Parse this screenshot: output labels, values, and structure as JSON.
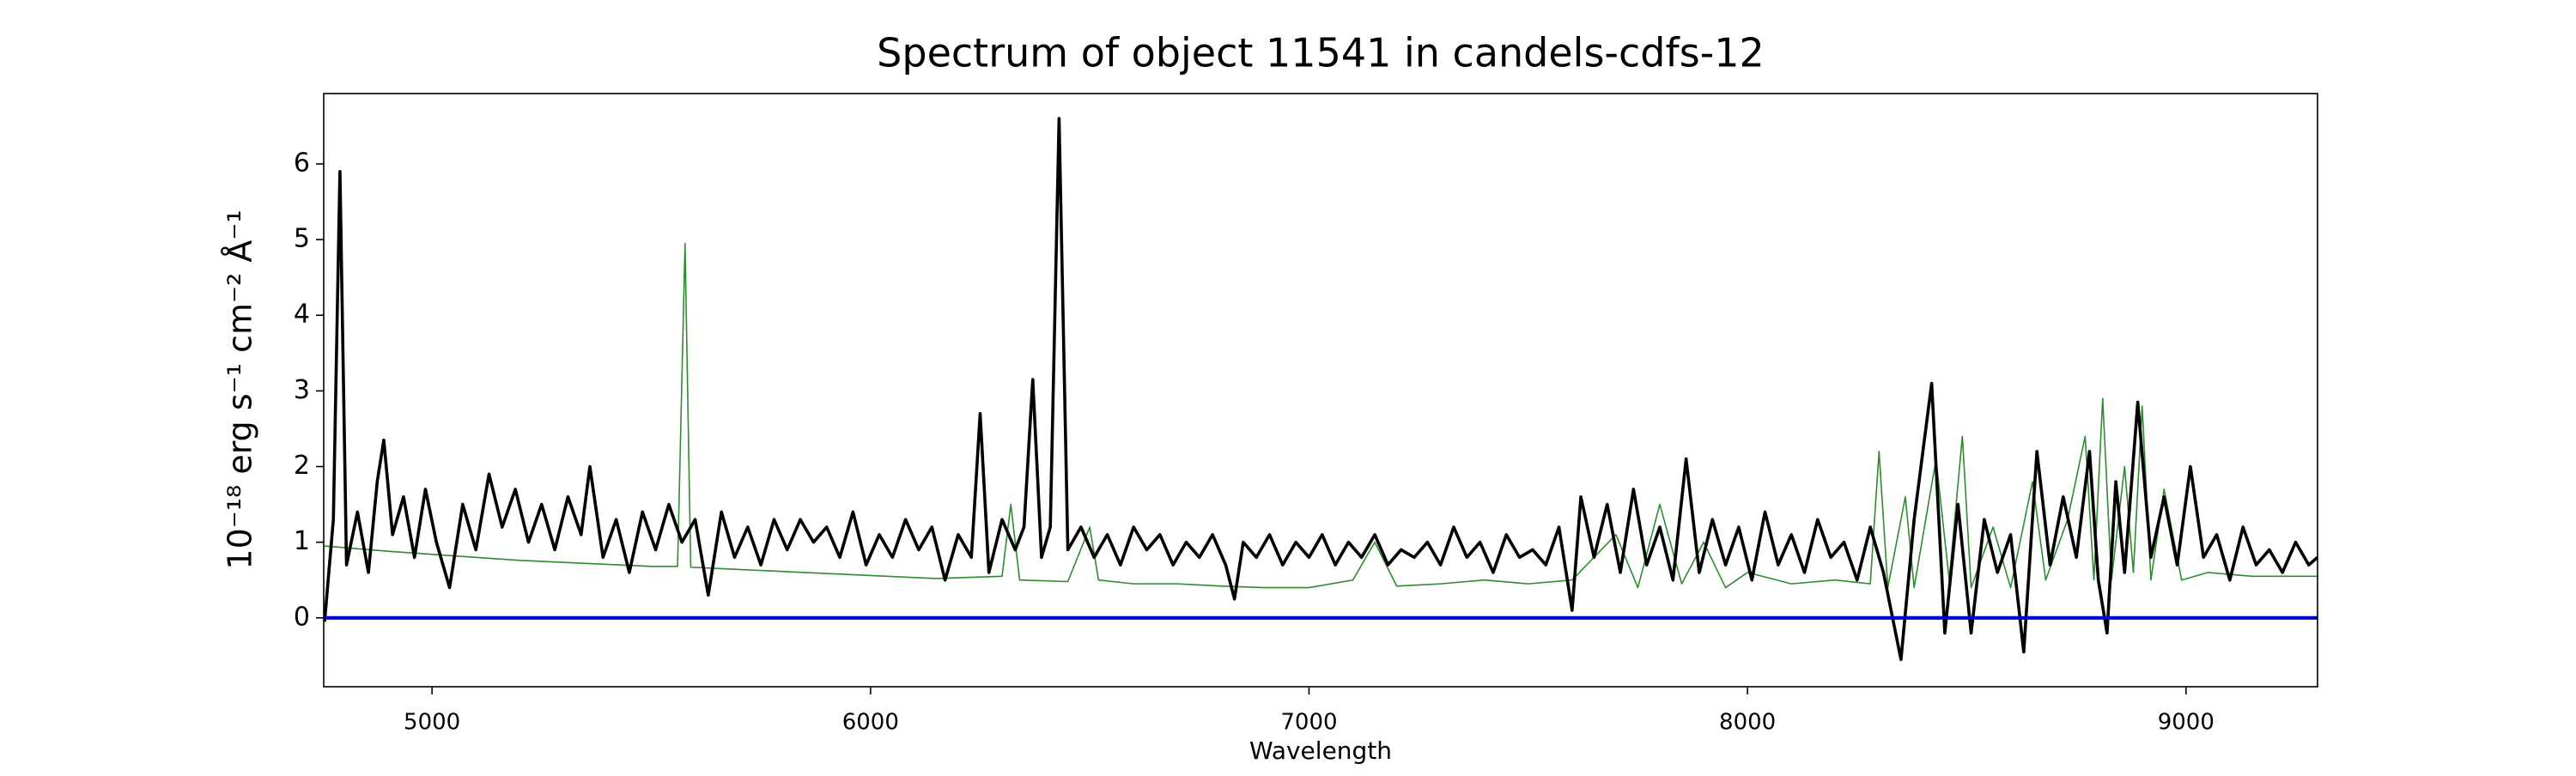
{
  "chart_data": {
    "type": "line",
    "title": "Spectrum of object 11541 in candels-cdfs-12",
    "x_label": "Wavelength",
    "y_label": "10⁻¹⁸ erg s⁻¹ cm⁻² Å⁻¹",
    "xlim": [
      4753,
      9300
    ],
    "ylim": [
      -0.91,
      6.93
    ],
    "xticks": [
      5000,
      6000,
      7000,
      8000,
      9000
    ],
    "yticks": [
      0,
      1,
      2,
      3,
      4,
      5,
      6
    ],
    "grid": false,
    "series": [
      {
        "color": "#2e8b2e",
        "width": 1.6,
        "x": [
          4755,
          4900,
          5050,
          5200,
          5350,
          5500,
          5560,
          5577,
          5590,
          5700,
          5850,
          6000,
          6150,
          6300,
          6320,
          6340,
          6450,
          6500,
          6520,
          6600,
          6700,
          6800,
          6900,
          7000,
          7100,
          7150,
          7200,
          7300,
          7400,
          7500,
          7600,
          7700,
          7750,
          7800,
          7850,
          7900,
          7950,
          8000,
          8100,
          8200,
          8280,
          8300,
          8320,
          8360,
          8380,
          8430,
          8460,
          8490,
          8510,
          8560,
          8600,
          8650,
          8680,
          8730,
          8770,
          8790,
          8810,
          8830,
          8860,
          8880,
          8900,
          8920,
          8950,
          8990,
          9050,
          9150,
          9300
        ],
        "values": [
          0.95,
          0.88,
          0.82,
          0.76,
          0.72,
          0.68,
          0.68,
          4.95,
          0.67,
          0.64,
          0.6,
          0.56,
          0.52,
          0.55,
          1.5,
          0.5,
          0.48,
          1.2,
          0.5,
          0.45,
          0.45,
          0.42,
          0.4,
          0.4,
          0.5,
          1.0,
          0.42,
          0.45,
          0.5,
          0.45,
          0.5,
          1.1,
          0.4,
          1.5,
          0.45,
          1.0,
          0.4,
          0.6,
          0.45,
          0.5,
          0.45,
          2.2,
          0.4,
          1.6,
          0.4,
          2.1,
          0.5,
          2.4,
          0.4,
          1.2,
          0.4,
          1.8,
          0.5,
          1.3,
          2.4,
          0.5,
          2.9,
          0.5,
          2.0,
          0.6,
          2.8,
          0.5,
          1.7,
          0.5,
          0.6,
          0.55,
          0.55
        ]
      },
      {
        "color": "#000000",
        "width": 3.6,
        "x": [
          4755,
          4775,
          4790,
          4805,
          4830,
          4855,
          4875,
          4890,
          4910,
          4935,
          4960,
          4985,
          5010,
          5040,
          5070,
          5100,
          5130,
          5160,
          5190,
          5220,
          5250,
          5280,
          5310,
          5340,
          5360,
          5390,
          5420,
          5450,
          5480,
          5510,
          5540,
          5570,
          5600,
          5630,
          5660,
          5690,
          5720,
          5750,
          5780,
          5810,
          5840,
          5870,
          5900,
          5930,
          5960,
          5990,
          6020,
          6050,
          6080,
          6110,
          6140,
          6170,
          6200,
          6230,
          6250,
          6270,
          6300,
          6330,
          6350,
          6370,
          6390,
          6410,
          6430,
          6450,
          6480,
          6510,
          6540,
          6570,
          6600,
          6630,
          6660,
          6690,
          6720,
          6750,
          6780,
          6810,
          6830,
          6850,
          6880,
          6910,
          6940,
          6970,
          7000,
          7030,
          7060,
          7090,
          7120,
          7150,
          7180,
          7210,
          7240,
          7270,
          7300,
          7330,
          7360,
          7390,
          7420,
          7450,
          7480,
          7510,
          7540,
          7570,
          7600,
          7620,
          7650,
          7680,
          7710,
          7740,
          7770,
          7800,
          7830,
          7860,
          7890,
          7920,
          7950,
          7980,
          8010,
          8040,
          8070,
          8100,
          8130,
          8160,
          8190,
          8220,
          8250,
          8280,
          8310,
          8350,
          8380,
          8420,
          8450,
          8480,
          8510,
          8540,
          8570,
          8600,
          8630,
          8660,
          8690,
          8720,
          8750,
          8780,
          8800,
          8820,
          8840,
          8860,
          8890,
          8920,
          8950,
          8980,
          9010,
          9040,
          9070,
          9100,
          9130,
          9160,
          9190,
          9220,
          9250,
          9280,
          9300
        ],
        "values": [
          -0.05,
          1.3,
          5.9,
          0.7,
          1.4,
          0.6,
          1.8,
          2.35,
          1.1,
          1.6,
          0.8,
          1.7,
          1.0,
          0.4,
          1.5,
          0.9,
          1.9,
          1.2,
          1.7,
          1.0,
          1.5,
          0.9,
          1.6,
          1.1,
          2.0,
          0.8,
          1.3,
          0.6,
          1.4,
          0.9,
          1.5,
          1.0,
          1.3,
          0.3,
          1.4,
          0.8,
          1.2,
          0.7,
          1.3,
          0.9,
          1.3,
          1.0,
          1.2,
          0.8,
          1.4,
          0.7,
          1.1,
          0.8,
          1.3,
          0.9,
          1.2,
          0.5,
          1.1,
          0.8,
          2.7,
          0.6,
          1.3,
          0.9,
          1.2,
          3.15,
          0.8,
          1.2,
          6.6,
          0.9,
          1.2,
          0.8,
          1.1,
          0.7,
          1.2,
          0.9,
          1.1,
          0.7,
          1.0,
          0.8,
          1.1,
          0.7,
          0.25,
          1.0,
          0.8,
          1.1,
          0.7,
          1.0,
          0.8,
          1.1,
          0.7,
          1.0,
          0.8,
          1.1,
          0.7,
          0.9,
          0.8,
          1.0,
          0.7,
          1.2,
          0.8,
          1.0,
          0.6,
          1.1,
          0.8,
          0.9,
          0.7,
          1.2,
          0.1,
          1.6,
          0.8,
          1.5,
          0.6,
          1.7,
          0.7,
          1.2,
          0.5,
          2.1,
          0.6,
          1.3,
          0.7,
          1.2,
          0.5,
          1.4,
          0.7,
          1.1,
          0.6,
          1.3,
          0.8,
          1.0,
          0.5,
          1.2,
          0.6,
          -0.55,
          1.3,
          3.1,
          -0.2,
          1.5,
          -0.2,
          1.3,
          0.6,
          1.1,
          -0.45,
          2.2,
          0.7,
          1.6,
          0.8,
          2.2,
          0.5,
          -0.2,
          1.8,
          0.6,
          2.85,
          0.8,
          1.6,
          0.7,
          2.0,
          0.8,
          1.1,
          0.5,
          1.2,
          0.7,
          0.9,
          0.6,
          1.0,
          0.7,
          0.8
        ]
      },
      {
        "color": "#0000cc",
        "width": 4.2,
        "x": [
          4753,
          9300
        ],
        "values": [
          0,
          0
        ]
      }
    ]
  }
}
